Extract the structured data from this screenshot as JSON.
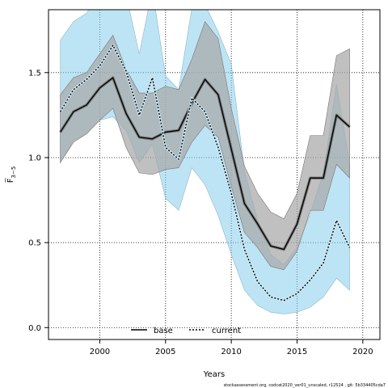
{
  "chart_data": {
    "type": "line",
    "xlabel": "Years",
    "ylabel": "F̅",
    "ylabel_sub": "3−5",
    "xlim": [
      1996.1,
      2021.3
    ],
    "ylim": [
      -0.07,
      1.87
    ],
    "x_ticks": [
      2000,
      2005,
      2010,
      2015,
      2020
    ],
    "y_ticks": [
      0.0,
      0.5,
      1.0,
      1.5
    ],
    "x_tick_labels": [
      "2000",
      "2005",
      "2010",
      "2015",
      "2020"
    ],
    "y_tick_labels": [
      "0.0",
      "0.5",
      "1.0",
      "1.5"
    ],
    "grid": true,
    "legend_position": "bottom-center",
    "series": [
      {
        "name": "base",
        "color": "#000000",
        "line_style": "solid",
        "band_color": "#a8a8a8",
        "x": [
          1997,
          1998,
          1999,
          2000,
          2001,
          2002,
          2003,
          2004,
          2005,
          2006,
          2007,
          2008,
          2009,
          2010,
          2011,
          2012,
          2013,
          2014,
          2015,
          2016,
          2017,
          2018,
          2019
        ],
        "values": [
          1.15,
          1.27,
          1.31,
          1.41,
          1.47,
          1.26,
          1.12,
          1.11,
          1.15,
          1.16,
          1.32,
          1.46,
          1.37,
          1.05,
          0.73,
          0.61,
          0.48,
          0.46,
          0.61,
          0.88,
          0.88,
          1.25,
          1.18
        ],
        "lower": [
          0.97,
          1.09,
          1.14,
          1.22,
          1.29,
          1.06,
          0.91,
          0.9,
          0.93,
          0.94,
          1.09,
          1.19,
          1.12,
          0.83,
          0.56,
          0.47,
          0.36,
          0.34,
          0.45,
          0.69,
          0.69,
          0.96,
          0.88
        ],
        "upper": [
          1.37,
          1.47,
          1.5,
          1.61,
          1.72,
          1.52,
          1.38,
          1.38,
          1.42,
          1.4,
          1.58,
          1.8,
          1.7,
          1.29,
          0.95,
          0.79,
          0.68,
          0.64,
          0.79,
          1.13,
          1.13,
          1.6,
          1.64
        ]
      },
      {
        "name": "current",
        "color": "#000000",
        "line_style": "dotted",
        "band_color": "#87ceeb",
        "x": [
          1997,
          1998,
          1999,
          2000,
          2001,
          2002,
          2003,
          2004,
          2005,
          2006,
          2007,
          2008,
          2009,
          2010,
          2011,
          2012,
          2013,
          2014,
          2015,
          2016,
          2017,
          2018,
          2019
        ],
        "values": [
          1.27,
          1.4,
          1.46,
          1.54,
          1.66,
          1.51,
          1.25,
          1.47,
          1.06,
          0.99,
          1.35,
          1.27,
          1.06,
          0.79,
          0.46,
          0.27,
          0.18,
          0.16,
          0.2,
          0.28,
          0.38,
          0.63,
          0.47
        ],
        "lower": [
          0.97,
          1.1,
          1.14,
          1.22,
          1.24,
          1.16,
          0.97,
          1.08,
          0.76,
          0.69,
          0.94,
          0.84,
          0.66,
          0.43,
          0.22,
          0.13,
          0.09,
          0.08,
          0.09,
          0.12,
          0.18,
          0.29,
          0.22
        ],
        "upper": [
          1.69,
          1.8,
          1.85,
          1.99,
          2.1,
          1.96,
          1.61,
          1.99,
          1.48,
          1.4,
          1.88,
          1.9,
          1.74,
          1.55,
          0.92,
          0.63,
          0.43,
          0.37,
          0.47,
          0.67,
          0.91,
          1.43,
          0.96
        ]
      }
    ]
  },
  "footnote": "stockassessment.org, codcat2020_ver01_unscaled, r12524 , git: 5b334405cda7"
}
